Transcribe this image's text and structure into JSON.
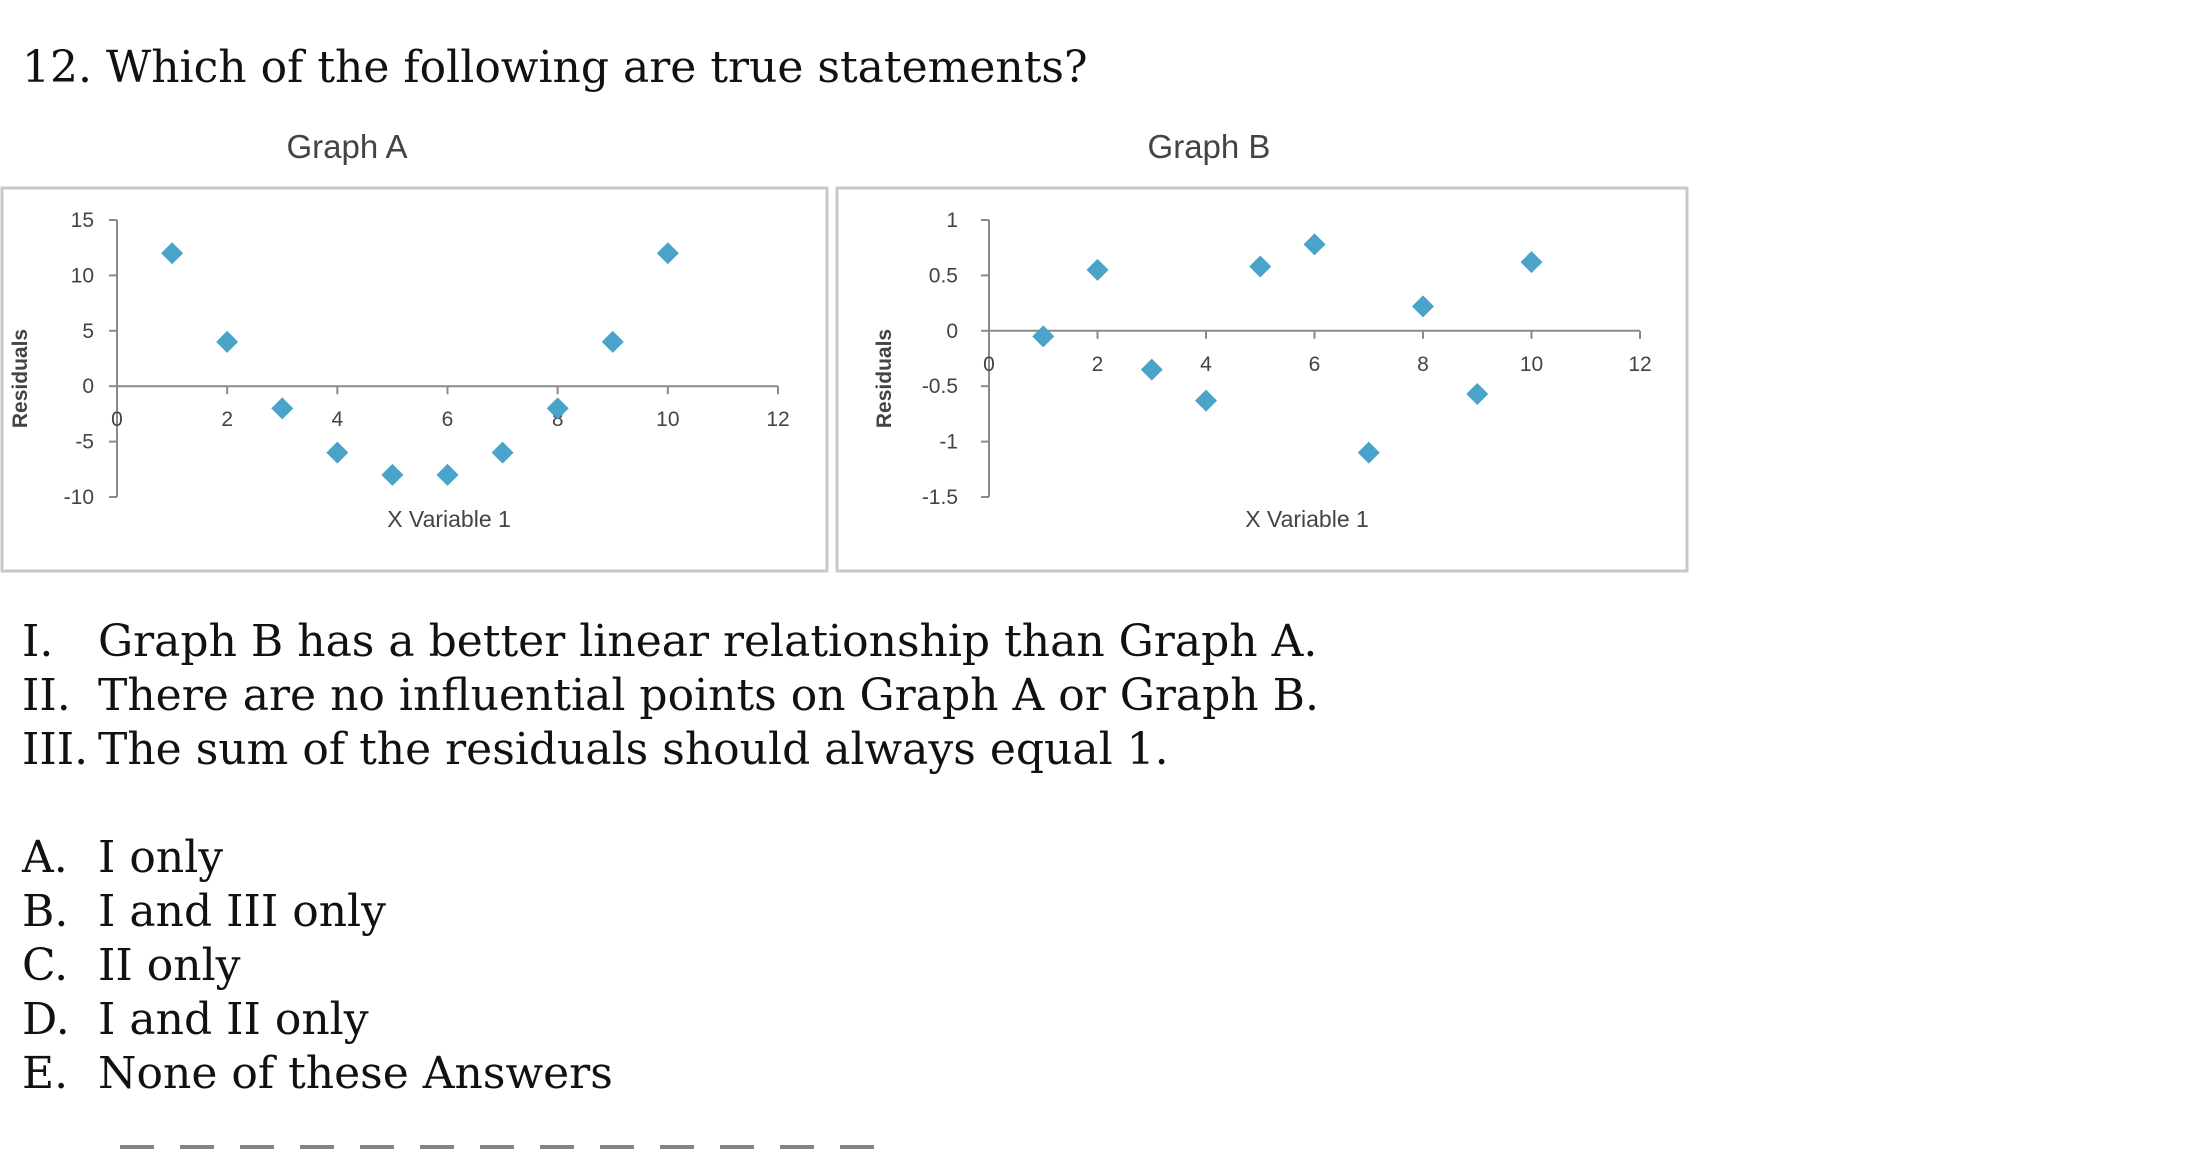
{
  "question": {
    "number": "12.",
    "text": "Which of the following are true statements?"
  },
  "statements": [
    {
      "numeral": "I.",
      "text": "Graph B has a better linear relationship than Graph A."
    },
    {
      "numeral": "II.",
      "text": "There are no influential points on Graph A or Graph B."
    },
    {
      "numeral": "III.",
      "text": "The sum of the residuals should always equal 1."
    }
  ],
  "choices": [
    {
      "letter": "A.",
      "text": "I only"
    },
    {
      "letter": "B.",
      "text": "I and III only"
    },
    {
      "letter": "C.",
      "text": "II only"
    },
    {
      "letter": "D.",
      "text": "I and II only"
    },
    {
      "letter": "E.",
      "text": "None of these Answers"
    }
  ],
  "colors": {
    "marker": "#4aa3c8",
    "frame": "#c8c8c8",
    "axis": "#8a8a8a"
  },
  "chart_data": [
    {
      "type": "scatter",
      "title": "Graph A",
      "xlabel": "X Variable 1",
      "ylabel": "Residuals",
      "xlim": [
        0,
        12
      ],
      "ylim": [
        -10,
        15
      ],
      "xticks": [
        0,
        2,
        4,
        6,
        8,
        10,
        12
      ],
      "yticks": [
        15,
        10,
        5,
        0,
        -5,
        -10
      ],
      "grid": false,
      "marker": "diamond",
      "x": [
        1,
        2,
        3,
        4,
        5,
        6,
        7,
        8,
        9,
        10
      ],
      "y": [
        12,
        4,
        -2,
        -6,
        -8,
        -8,
        -6,
        -2,
        4,
        12
      ]
    },
    {
      "type": "scatter",
      "title": "Graph B",
      "xlabel": "X Variable 1",
      "ylabel": "Residuals",
      "xlim": [
        0,
        12
      ],
      "ylim": [
        -1.5,
        1
      ],
      "xticks": [
        0,
        2,
        4,
        6,
        8,
        10,
        12
      ],
      "yticks": [
        1,
        0.5,
        0,
        -0.5,
        -1,
        -1.5
      ],
      "grid": false,
      "marker": "diamond",
      "x": [
        1,
        2,
        3,
        4,
        5,
        6,
        7,
        8,
        9,
        10
      ],
      "y": [
        -0.05,
        0.55,
        -0.35,
        -0.63,
        0.58,
        0.78,
        -1.1,
        0.22,
        -0.57,
        0.62
      ]
    }
  ]
}
